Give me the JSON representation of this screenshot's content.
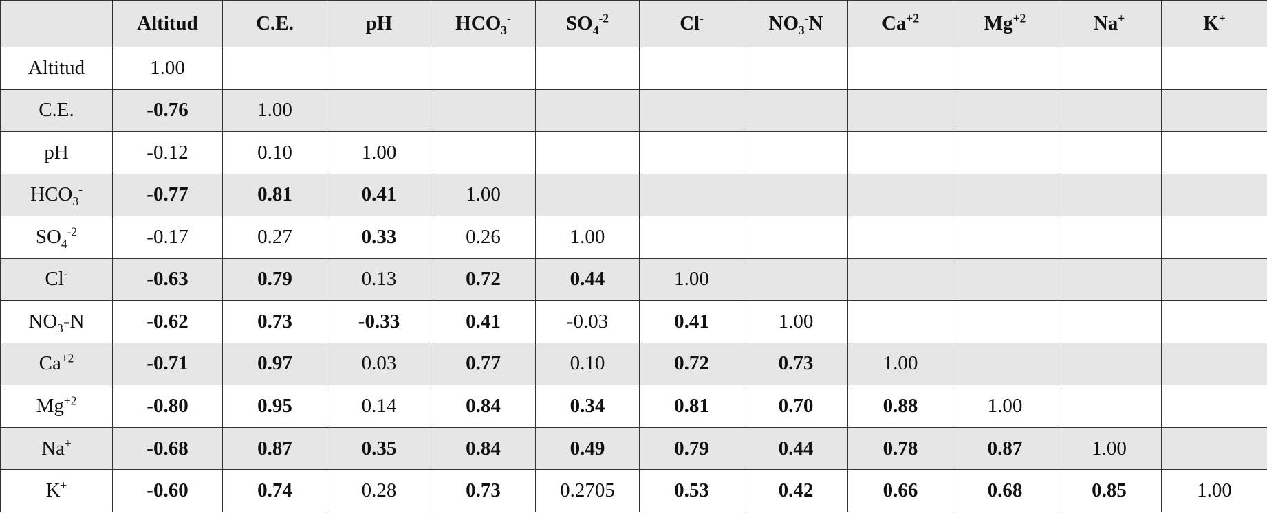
{
  "table": {
    "columns": [
      {
        "parts": [
          {
            "text": "Altitud"
          }
        ]
      },
      {
        "parts": [
          {
            "text": "C.E."
          }
        ]
      },
      {
        "parts": [
          {
            "text": "pH"
          }
        ]
      },
      {
        "parts": [
          {
            "text": "HCO"
          },
          {
            "text": "3",
            "style": "sub"
          },
          {
            "text": "-",
            "style": "sup"
          }
        ]
      },
      {
        "parts": [
          {
            "text": "SO"
          },
          {
            "text": "4",
            "style": "sub"
          },
          {
            "text": "-2",
            "style": "sup"
          }
        ]
      },
      {
        "parts": [
          {
            "text": "Cl"
          },
          {
            "text": "-",
            "style": "sup"
          }
        ]
      },
      {
        "parts": [
          {
            "text": "NO"
          },
          {
            "text": "3",
            "style": "sub"
          },
          {
            "text": "-",
            "style": "sup"
          },
          {
            "text": "N"
          }
        ]
      },
      {
        "parts": [
          {
            "text": "Ca"
          },
          {
            "text": "+2",
            "style": "sup"
          }
        ]
      },
      {
        "parts": [
          {
            "text": "Mg"
          },
          {
            "text": "+2",
            "style": "sup"
          }
        ]
      },
      {
        "parts": [
          {
            "text": "Na"
          },
          {
            "text": "+",
            "style": "sup"
          }
        ]
      },
      {
        "parts": [
          {
            "text": "K"
          },
          {
            "text": "+",
            "style": "sup"
          }
        ]
      }
    ],
    "rows": [
      {
        "label": {
          "parts": [
            {
              "text": "Altitud"
            }
          ]
        },
        "cells": [
          "1.00"
        ],
        "bold": [
          false
        ]
      },
      {
        "label": {
          "parts": [
            {
              "text": "C.E."
            }
          ]
        },
        "cells": [
          "-0.76",
          "1.00"
        ],
        "bold": [
          true,
          false
        ]
      },
      {
        "label": {
          "parts": [
            {
              "text": "pH"
            }
          ]
        },
        "cells": [
          "-0.12",
          "0.10",
          "1.00"
        ],
        "bold": [
          false,
          false,
          false
        ]
      },
      {
        "label": {
          "parts": [
            {
              "text": "HCO"
            },
            {
              "text": "3",
              "style": "sub"
            },
            {
              "text": "-",
              "style": "sup"
            }
          ]
        },
        "cells": [
          "-0.77",
          "0.81",
          "0.41",
          "1.00"
        ],
        "bold": [
          true,
          true,
          true,
          false
        ]
      },
      {
        "label": {
          "parts": [
            {
              "text": "SO"
            },
            {
              "text": "4",
              "style": "sub"
            },
            {
              "text": "-2",
              "style": "sup"
            }
          ]
        },
        "cells": [
          "-0.17",
          "0.27",
          "0.33",
          "0.26",
          "1.00"
        ],
        "bold": [
          false,
          false,
          true,
          false,
          false
        ]
      },
      {
        "label": {
          "parts": [
            {
              "text": "Cl"
            },
            {
              "text": "-",
              "style": "sup"
            }
          ]
        },
        "cells": [
          "-0.63",
          "0.79",
          "0.13",
          "0.72",
          "0.44",
          "1.00"
        ],
        "bold": [
          true,
          true,
          false,
          true,
          true,
          false
        ]
      },
      {
        "label": {
          "parts": [
            {
              "text": "NO"
            },
            {
              "text": "3",
              "style": "sub"
            },
            {
              "text": "-N"
            }
          ]
        },
        "cells": [
          "-0.62",
          "0.73",
          "-0.33",
          "0.41",
          "-0.03",
          "0.41",
          "1.00"
        ],
        "bold": [
          true,
          true,
          true,
          true,
          false,
          true,
          false
        ]
      },
      {
        "label": {
          "parts": [
            {
              "text": "Ca"
            },
            {
              "text": "+2",
              "style": "sup"
            }
          ]
        },
        "cells": [
          "-0.71",
          "0.97",
          "0.03",
          "0.77",
          "0.10",
          "0.72",
          "0.73",
          "1.00"
        ],
        "bold": [
          true,
          true,
          false,
          true,
          false,
          true,
          true,
          false
        ]
      },
      {
        "label": {
          "parts": [
            {
              "text": "Mg"
            },
            {
              "text": "+2",
              "style": "sup"
            }
          ]
        },
        "cells": [
          "-0.80",
          "0.95",
          "0.14",
          "0.84",
          "0.34",
          "0.81",
          "0.70",
          "0.88",
          "1.00"
        ],
        "bold": [
          true,
          true,
          false,
          true,
          true,
          true,
          true,
          true,
          false
        ]
      },
      {
        "label": {
          "parts": [
            {
              "text": "Na"
            },
            {
              "text": "+",
              "style": "sup"
            }
          ]
        },
        "cells": [
          "-0.68",
          "0.87",
          "0.35",
          "0.84",
          "0.49",
          "0.79",
          "0.44",
          "0.78",
          "0.87",
          "1.00"
        ],
        "bold": [
          true,
          true,
          true,
          true,
          true,
          true,
          true,
          true,
          true,
          false
        ]
      },
      {
        "label": {
          "parts": [
            {
              "text": "K"
            },
            {
              "text": "+",
              "style": "sup"
            }
          ]
        },
        "cells": [
          "-0.60",
          "0.74",
          "0.28",
          "0.73",
          "0.2705",
          "0.53",
          "0.42",
          "0.66",
          "0.68",
          "0.85",
          "1.00"
        ],
        "bold": [
          true,
          true,
          false,
          true,
          false,
          true,
          true,
          true,
          true,
          true,
          false
        ]
      }
    ]
  }
}
